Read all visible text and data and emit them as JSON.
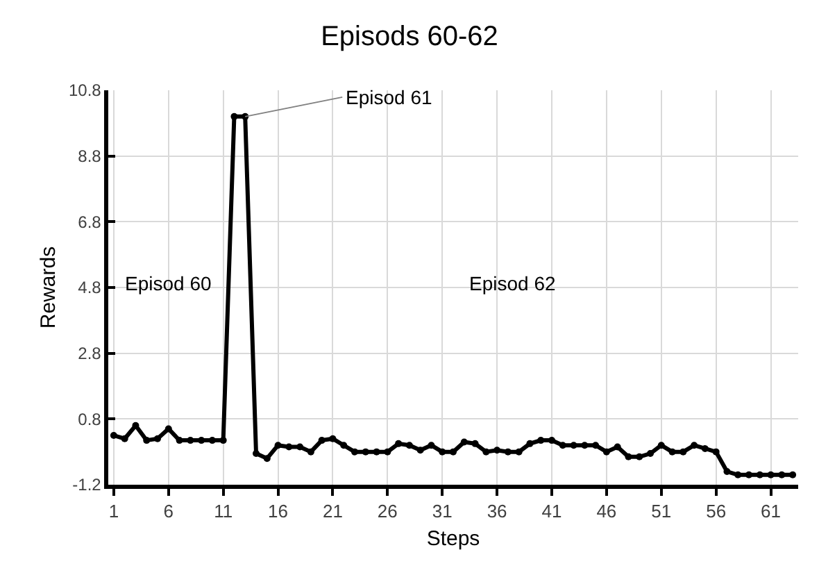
{
  "chart_data": {
    "type": "line",
    "title": "Episods 60-62",
    "xlabel": "Steps",
    "ylabel": "Rewards",
    "x": [
      1,
      2,
      3,
      4,
      5,
      6,
      7,
      8,
      9,
      10,
      11,
      12,
      13,
      14,
      15,
      16,
      17,
      18,
      19,
      20,
      21,
      22,
      23,
      24,
      25,
      26,
      27,
      28,
      29,
      30,
      31,
      32,
      33,
      34,
      35,
      36,
      37,
      38,
      39,
      40,
      41,
      42,
      43,
      44,
      45,
      46,
      47,
      48,
      49,
      50,
      51,
      52,
      53,
      54,
      55,
      56,
      57,
      58,
      59,
      60,
      61,
      62,
      63
    ],
    "series": [
      {
        "color": "#000000",
        "values": [
          0.3,
          0.2,
          0.6,
          0.15,
          0.2,
          0.5,
          0.15,
          0.15,
          0.15,
          0.15,
          0.15,
          10.0,
          10.0,
          -0.25,
          -0.4,
          0.0,
          -0.05,
          -0.05,
          -0.2,
          0.15,
          0.2,
          0.0,
          -0.2,
          -0.2,
          -0.2,
          -0.2,
          0.05,
          0.0,
          -0.15,
          0.0,
          -0.2,
          -0.2,
          0.1,
          0.05,
          -0.2,
          -0.15,
          -0.2,
          -0.2,
          0.05,
          0.15,
          0.15,
          0.0,
          0.0,
          0.0,
          0.0,
          -0.2,
          -0.05,
          -0.35,
          -0.35,
          -0.25,
          0.0,
          -0.2,
          -0.2,
          0.0,
          -0.1,
          -0.2,
          -0.8,
          -0.9,
          -0.9,
          -0.9,
          -0.9,
          -0.9,
          -0.9
        ]
      }
    ],
    "xlim": [
      0.5,
      63.5
    ],
    "xticks": [
      1,
      6,
      11,
      16,
      21,
      26,
      31,
      36,
      41,
      46,
      51,
      56,
      61
    ],
    "ylim": [
      -1.2,
      10.8
    ],
    "yticks": [
      -1.2,
      0.8,
      2.8,
      4.8,
      6.8,
      8.8,
      10.8
    ],
    "grid": true,
    "marker": "circle",
    "line_style": "solid",
    "annotations": [
      "Episod 60",
      {
        "text": "Episod 61",
        "x": 13,
        "y": 10.0
      },
      "Episod 62"
    ]
  }
}
